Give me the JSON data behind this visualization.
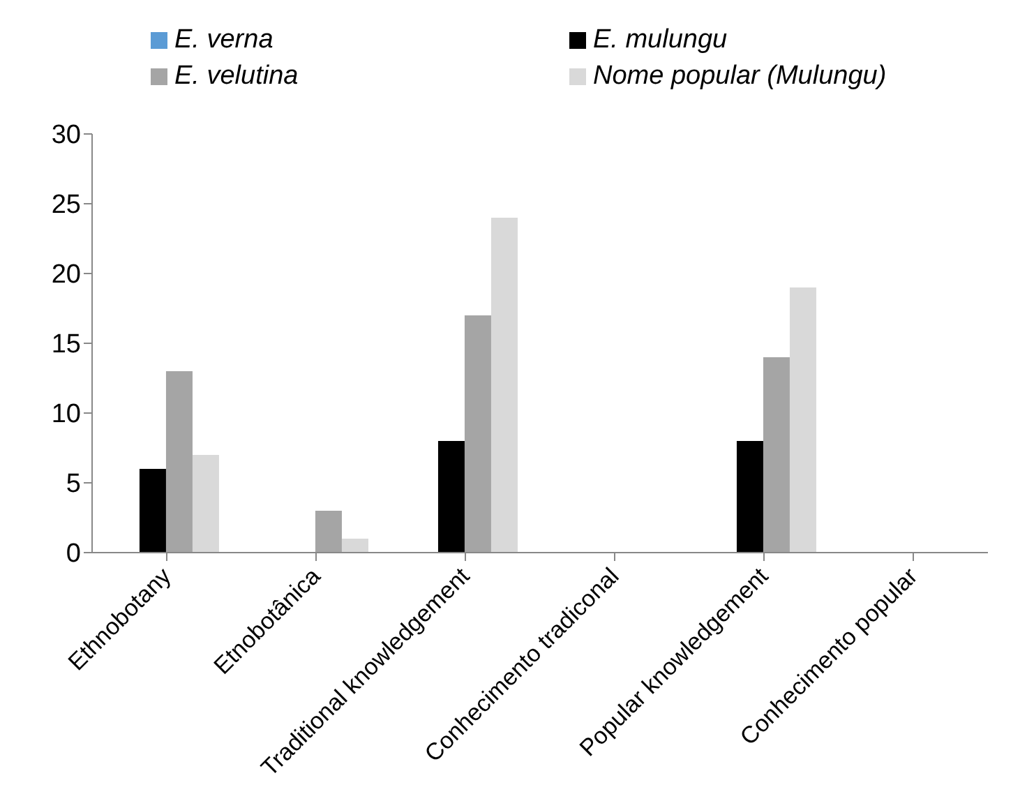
{
  "chart_data": {
    "type": "bar",
    "categories": [
      "Ethnobotany",
      "Etnobotânica",
      "Traditional knowledgement",
      "Conhecimento tradiconal",
      "Popular knowledgement",
      "Conhecimento popular"
    ],
    "series": [
      {
        "name": "E. verna",
        "color": "#5b9bd5",
        "values": [
          0,
          0,
          0,
          0,
          0,
          0
        ]
      },
      {
        "name": "E. mulungu",
        "color": "#000000",
        "values": [
          6,
          0,
          8,
          0,
          8,
          0
        ]
      },
      {
        "name": "E. velutina",
        "color": "#a5a5a5",
        "values": [
          13,
          3,
          17,
          0,
          14,
          0
        ]
      },
      {
        "name": "Nome popular (Mulungu)",
        "color": "#d9d9d9",
        "values": [
          7,
          1,
          24,
          0,
          19,
          0
        ]
      }
    ],
    "ylim": [
      0,
      30
    ],
    "yticks": [
      0,
      5,
      10,
      15,
      20,
      25,
      30
    ],
    "legend": "top"
  }
}
